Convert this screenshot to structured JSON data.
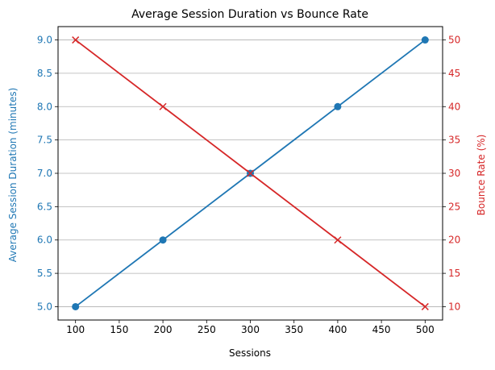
{
  "chart_data": {
    "type": "line",
    "title": "Average Session Duration vs Bounce Rate",
    "xlabel": "Sessions",
    "x": [
      100,
      200,
      300,
      400,
      500
    ],
    "xlim": [
      80,
      520
    ],
    "xticks": [
      100,
      150,
      200,
      250,
      300,
      350,
      400,
      450,
      500
    ],
    "grid": "horizontal",
    "series": [
      {
        "axis": "left",
        "ylabel": "Average Session Duration (minutes)",
        "values": [
          5.0,
          6.0,
          7.0,
          8.0,
          9.0
        ],
        "ylim": [
          4.8,
          9.2
        ],
        "yticks": [
          5.0,
          5.5,
          6.0,
          6.5,
          7.0,
          7.5,
          8.0,
          8.5,
          9.0
        ],
        "tick_format": 1,
        "color": "#1f77b4",
        "marker": "circle"
      },
      {
        "axis": "right",
        "ylabel": "Bounce Rate (%)",
        "values": [
          50,
          40,
          30,
          20,
          10
        ],
        "ylim": [
          8,
          52
        ],
        "yticks": [
          10,
          15,
          20,
          25,
          30,
          35,
          40,
          45,
          50
        ],
        "tick_format": 0,
        "color": "#d62728",
        "marker": "x"
      }
    ]
  }
}
